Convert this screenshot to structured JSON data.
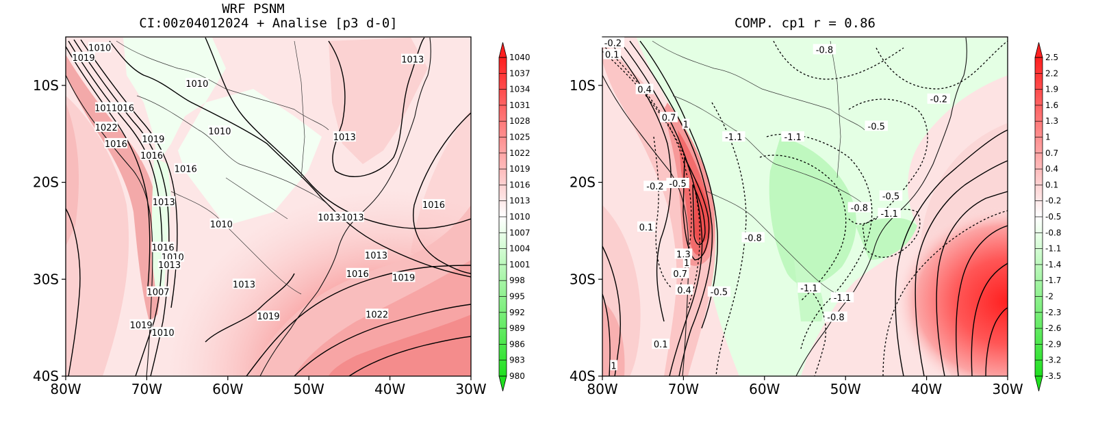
{
  "panels": [
    {
      "id": "left",
      "title_line1": "WRF PSNM",
      "title_line2": "CI:00z04012024 + Analise  [p3 d-0]",
      "x_ticks": [
        "80W",
        "70W",
        "60W",
        "50W",
        "40W",
        "30W"
      ],
      "y_ticks": [
        "10S",
        "20S",
        "30S",
        "40S"
      ],
      "colorbar_labels": [
        "1040",
        "1037",
        "1034",
        "1031",
        "1028",
        "1025",
        "1022",
        "1019",
        "1016",
        "1013",
        "1010",
        "1007",
        "1004",
        "1001",
        "998",
        "995",
        "992",
        "989",
        "986",
        "983",
        "980"
      ],
      "contour_labels": [
        {
          "text": "1010",
          "lon": -75.8,
          "lat": -6.1
        },
        {
          "text": "1019",
          "lon": -77.8,
          "lat": -7.1
        },
        {
          "text": "1010",
          "lon": -63.8,
          "lat": -9.8
        },
        {
          "text": "1013",
          "lon": -37.2,
          "lat": -7.3
        },
        {
          "text": "1011016",
          "lon": -74.0,
          "lat": -12.3
        },
        {
          "text": "1022",
          "lon": -75.0,
          "lat": -14.3
        },
        {
          "text": "1010",
          "lon": -61.0,
          "lat": -14.7
        },
        {
          "text": "1013",
          "lon": -45.6,
          "lat": -15.3
        },
        {
          "text": "1016",
          "lon": -73.8,
          "lat": -16.0
        },
        {
          "text": "1019",
          "lon": -69.2,
          "lat": -15.5
        },
        {
          "text": "1016",
          "lon": -69.4,
          "lat": -17.2
        },
        {
          "text": "1016",
          "lon": -65.2,
          "lat": -18.6
        },
        {
          "text": "1016",
          "lon": -34.6,
          "lat": -22.3
        },
        {
          "text": "1013",
          "lon": -67.9,
          "lat": -22.0
        },
        {
          "text": "1010",
          "lon": -60.8,
          "lat": -24.3
        },
        {
          "text": "1013",
          "lon": -47.5,
          "lat": -23.6
        },
        {
          "text": "1013",
          "lon": -44.6,
          "lat": -23.6
        },
        {
          "text": "1016",
          "lon": -68.0,
          "lat": -26.7
        },
        {
          "text": "1010",
          "lon": -66.8,
          "lat": -27.7
        },
        {
          "text": "1013",
          "lon": -67.2,
          "lat": -28.5
        },
        {
          "text": "1013",
          "lon": -41.7,
          "lat": -27.5
        },
        {
          "text": "1016",
          "lon": -44.0,
          "lat": -29.4
        },
        {
          "text": "1019",
          "lon": -38.3,
          "lat": -29.8
        },
        {
          "text": "1013",
          "lon": -58.0,
          "lat": -30.5
        },
        {
          "text": "1007",
          "lon": -68.6,
          "lat": -31.3
        },
        {
          "text": "1019",
          "lon": -55.0,
          "lat": -33.8
        },
        {
          "text": "1022",
          "lon": -41.6,
          "lat": -33.6
        },
        {
          "text": "1019",
          "lon": -70.7,
          "lat": -34.7
        },
        {
          "text": "1010",
          "lon": -68.0,
          "lat": -35.5
        }
      ]
    },
    {
      "id": "right",
      "title_line1": "COMP. cp1  r =  0.86",
      "x_ticks": [
        "80W",
        "70W",
        "60W",
        "50W",
        "40W",
        "30W"
      ],
      "y_ticks": [
        "10S",
        "20S",
        "30S",
        "40S"
      ],
      "colorbar_labels": [
        "2.5",
        "2.2",
        "1.9",
        "1.6",
        "1.3",
        "1",
        "0.7",
        "0.4",
        "0.1",
        "-0.2",
        "-0.5",
        "-0.8",
        "-1.1",
        "-1.4",
        "-1.7",
        "-2",
        "-2.3",
        "-2.6",
        "-2.9",
        "-3.2",
        "-3.5"
      ],
      "contour_labels": [
        {
          "text": "-0.2",
          "lon": -78.7,
          "lat": -5.6
        },
        {
          "text": "0.1",
          "lon": -78.8,
          "lat": -6.8
        },
        {
          "text": "-0.8",
          "lon": -52.6,
          "lat": -6.3
        },
        {
          "text": "0.4",
          "lon": -74.8,
          "lat": -10.4
        },
        {
          "text": "-0.2",
          "lon": -38.5,
          "lat": -11.4
        },
        {
          "text": "0.7",
          "lon": -71.8,
          "lat": -13.3
        },
        {
          "text": "1",
          "lon": -69.7,
          "lat": -14.0
        },
        {
          "text": "-0.5",
          "lon": -46.2,
          "lat": -14.2
        },
        {
          "text": "-1.1",
          "lon": -63.8,
          "lat": -15.3
        },
        {
          "text": "-1.1",
          "lon": -56.5,
          "lat": -15.3
        },
        {
          "text": "-0.2",
          "lon": -73.5,
          "lat": -20.4
        },
        {
          "text": "-0.5",
          "lon": -70.7,
          "lat": -20.1
        },
        {
          "text": "-0.5",
          "lon": -44.4,
          "lat": -21.4
        },
        {
          "text": "-0.8",
          "lon": -48.3,
          "lat": -22.6
        },
        {
          "text": "-1.1",
          "lon": -44.6,
          "lat": -23.2
        },
        {
          "text": "0.1",
          "lon": -74.6,
          "lat": -24.6
        },
        {
          "text": "-0.8",
          "lon": -61.4,
          "lat": -25.7
        },
        {
          "text": "1.3",
          "lon": -70.0,
          "lat": -27.4
        },
        {
          "text": "1",
          "lon": -69.6,
          "lat": -28.3
        },
        {
          "text": "0.7",
          "lon": -70.4,
          "lat": -29.4
        },
        {
          "text": "0.4",
          "lon": -69.9,
          "lat": -31.1
        },
        {
          "text": "-0.5",
          "lon": -65.6,
          "lat": -31.3
        },
        {
          "text": "-1.1",
          "lon": -54.5,
          "lat": -30.9
        },
        {
          "text": "-1.1",
          "lon": -50.4,
          "lat": -31.9
        },
        {
          "text": "-0.8",
          "lon": -51.2,
          "lat": -33.9
        },
        {
          "text": "0.1",
          "lon": -72.8,
          "lat": -36.7
        },
        {
          "text": "1",
          "lon": -78.6,
          "lat": -38.9
        }
      ]
    }
  ],
  "colors": {
    "high": "#ff2a2a",
    "mid_high": "#f58a8a",
    "light_pink": "#fde4e4",
    "light_green": "#e6ffe6",
    "green": "#b8f7b8",
    "low": "#22e022"
  }
}
